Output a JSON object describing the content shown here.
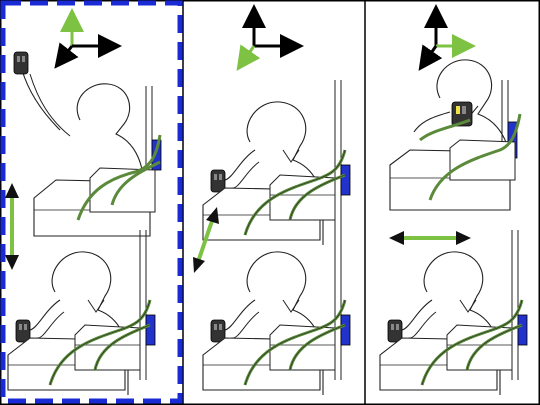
{
  "figure": {
    "panels": [
      {
        "id": "left",
        "highlighted": true,
        "motion_axis": "vertical"
      },
      {
        "id": "middle",
        "highlighted": false,
        "motion_axis": "diagonal"
      },
      {
        "id": "right",
        "highlighted": false,
        "motion_axis": "horizontal"
      }
    ],
    "colors": {
      "highlight_border": "#1a2bd6",
      "motion_arrow": "#7dc242",
      "axis_black": "#000000",
      "axis_green": "#7dc242",
      "cable_green": "#5a8a3a",
      "device_blue": "#2233cc",
      "line": "#222222"
    },
    "icons": [
      "coordinate-frame-icon",
      "motion-arrow-icon",
      "handheld-controller-icon",
      "robot-stand-icon",
      "user-silhouette-icon"
    ]
  }
}
